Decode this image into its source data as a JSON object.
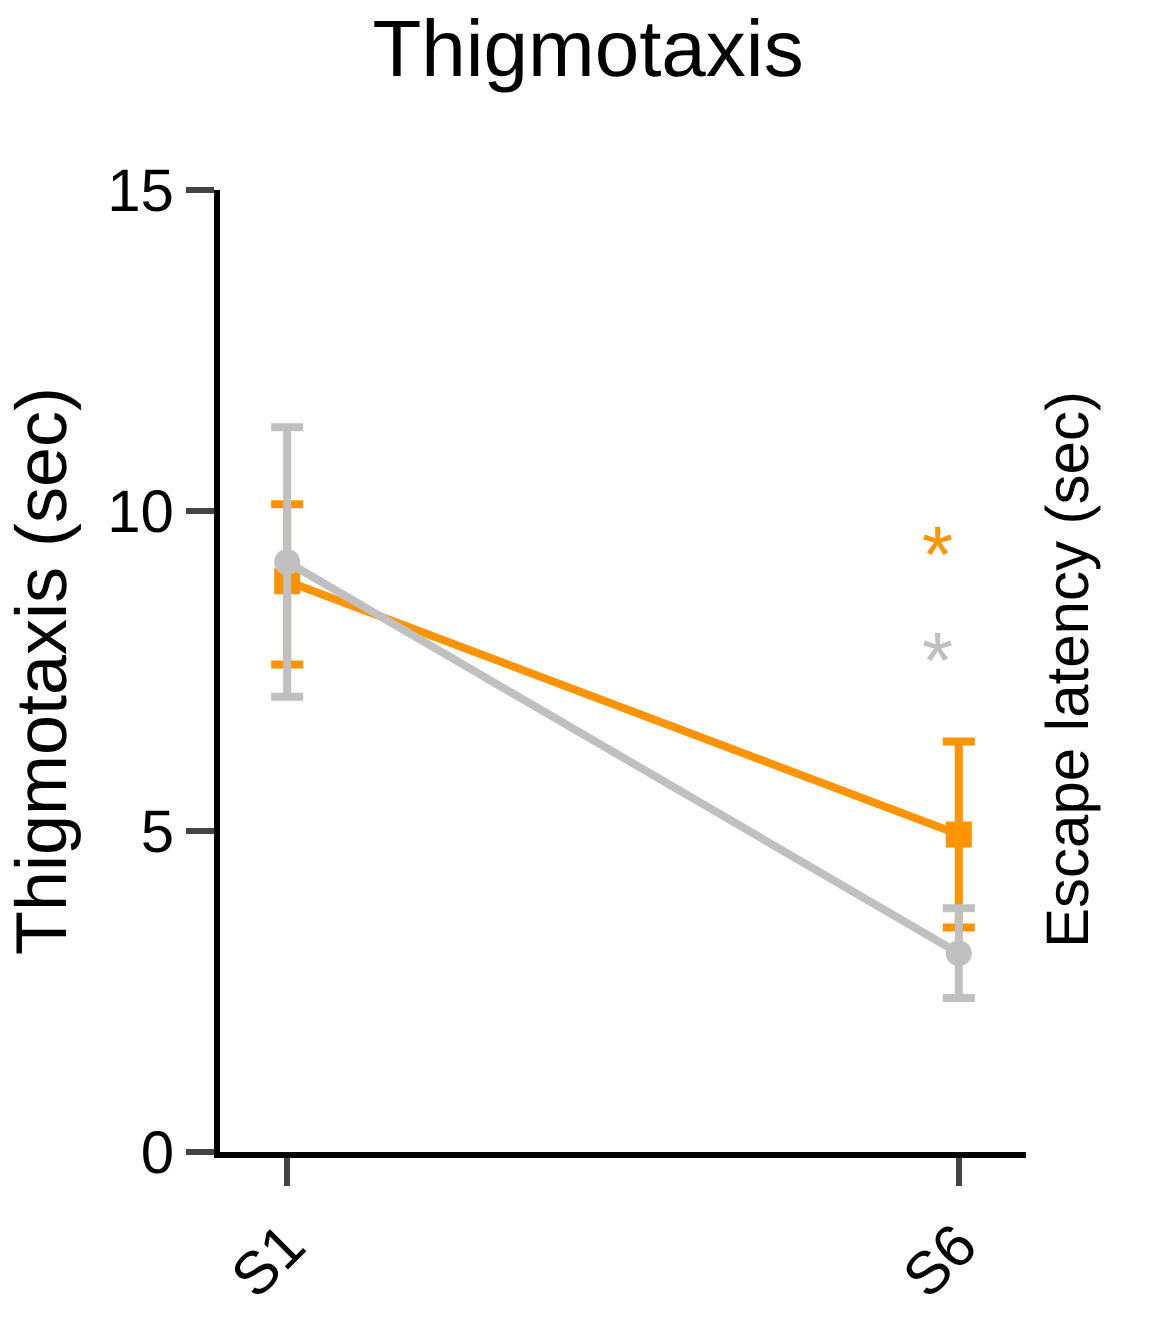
{
  "chart_data": {
    "type": "line",
    "title": "Thigmotaxis",
    "ylabel": "Thigmotaxis (sec)",
    "y2label": "Escape latency (sec)",
    "categories": [
      "S1",
      "S6"
    ],
    "series": [
      {
        "color": "#ff9400",
        "marker": "square",
        "values": [
          8.9,
          4.95
        ],
        "errors": [
          [
            7.6,
            10.1
          ],
          [
            3.5,
            6.4
          ]
        ]
      },
      {
        "color": "#c0c0c0",
        "marker": "circle",
        "values": [
          9.2,
          3.1
        ],
        "errors": [
          [
            7.1,
            11.3
          ],
          [
            2.4,
            3.8
          ]
        ]
      }
    ],
    "annotations": [
      "*",
      "*"
    ],
    "ylim": [
      0,
      15
    ],
    "yticks": [
      0,
      5,
      10,
      15
    ]
  }
}
